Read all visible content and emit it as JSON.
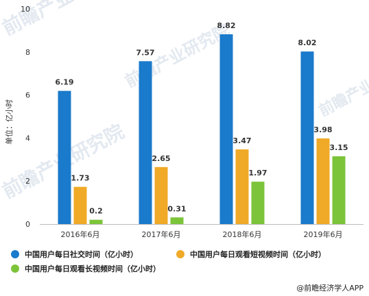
{
  "chart_data": {
    "type": "bar",
    "categories": [
      "2016年6月",
      "2017年6月",
      "2018年6月",
      "2019年6月"
    ],
    "series": [
      {
        "name": "中国用户每日社交时间（亿小时）",
        "values": [
          6.19,
          7.57,
          8.82,
          8.02
        ]
      },
      {
        "name": "中国用户每日观看短视频时间（亿小时）",
        "values": [
          1.73,
          2.65,
          3.47,
          3.98
        ]
      },
      {
        "name": "中国用户每日观看长视频时间（亿小时）",
        "values": [
          0.2,
          0.31,
          1.97,
          3.15
        ]
      }
    ],
    "ylabel": "单位：亿小时",
    "ylim": [
      0,
      10
    ],
    "yticks": [
      0,
      2,
      4,
      6,
      8,
      10
    ],
    "grid": false,
    "legend": "bottom",
    "colors": [
      "#1a7acb",
      "#f0aa28",
      "#7cc43a"
    ]
  },
  "source": "@前瞻经济学人APP",
  "watermark": "前瞻产业研究院"
}
